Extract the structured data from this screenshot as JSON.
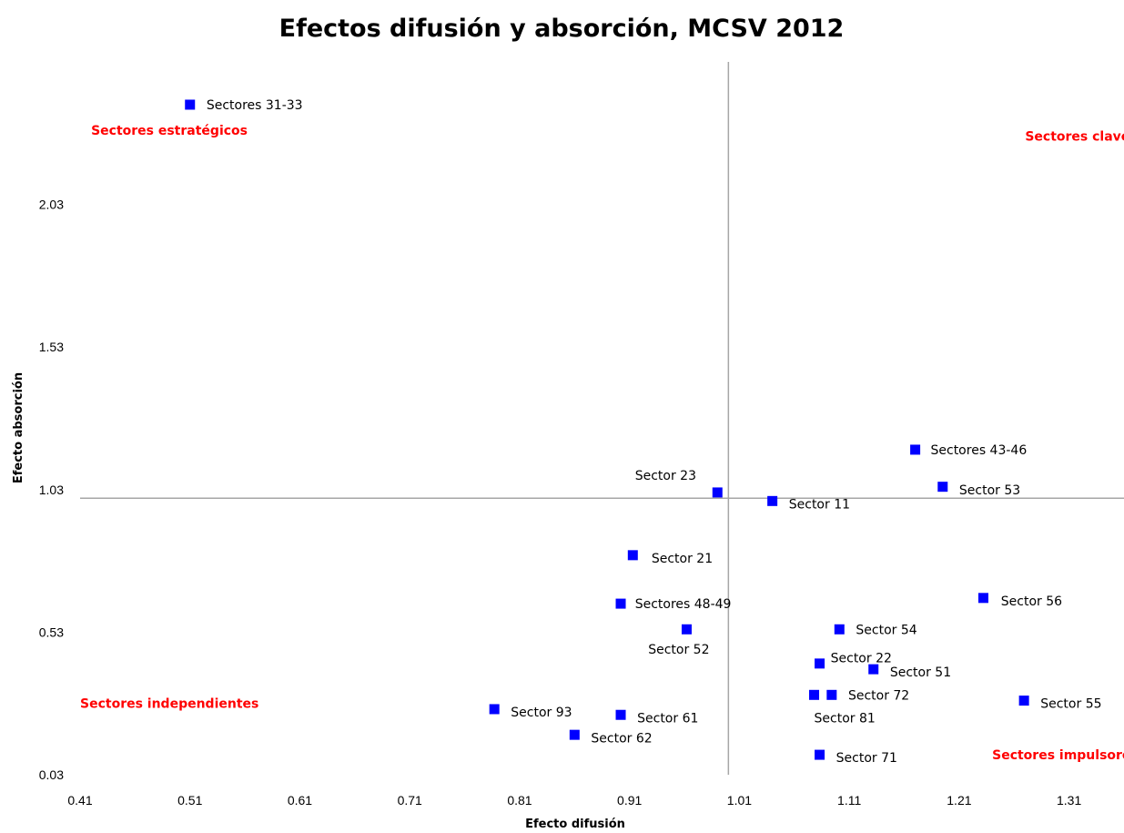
{
  "chart_data": {
    "type": "scatter",
    "title": "Efectos difusión y absorción, MCSV 2012",
    "xlabel": "Efecto difusión",
    "ylabel": "Efecto absorción",
    "xlim": [
      0.41,
      1.36
    ],
    "ylim": [
      0.03,
      2.53
    ],
    "xticks": [
      "0.41",
      "0.51",
      "0.61",
      "0.71",
      "0.81",
      "0.91",
      "1.01",
      "1.11",
      "1.21",
      "1.31"
    ],
    "yticks": [
      "0.03",
      "0.53",
      "1.03",
      "1.53",
      "2.03"
    ],
    "reference_lines": {
      "x": 1.0,
      "y": 1.0
    },
    "marker_color": "#0000ff",
    "quadrant_label_color": "#ff0000",
    "quadrants": [
      {
        "label": "Sectores  estratégicos",
        "x": 0.42,
        "y": 2.29
      },
      {
        "label": "Sectores clave",
        "x": 1.27,
        "y": 2.27
      },
      {
        "label": "Sectores independientes",
        "x": 0.41,
        "y": 0.28
      },
      {
        "label": "Sectores  impulsores",
        "x": 1.24,
        "y": 0.1
      }
    ],
    "points": [
      {
        "label": "Sectores 31-33",
        "x": 0.51,
        "y": 2.38,
        "lx": 0.525,
        "ly": 2.38
      },
      {
        "label": "Sectores 43-46",
        "x": 1.17,
        "y": 1.17,
        "lx": 1.184,
        "ly": 1.17
      },
      {
        "label": "Sector 53",
        "x": 1.195,
        "y": 1.04,
        "lx": 1.21,
        "ly": 1.03
      },
      {
        "label": "Sector 23",
        "x": 0.99,
        "y": 1.02,
        "lx": 0.915,
        "ly": 1.08
      },
      {
        "label": "Sector 11",
        "x": 1.04,
        "y": 0.99,
        "lx": 1.055,
        "ly": 0.98
      },
      {
        "label": "Sector 21",
        "x": 0.913,
        "y": 0.8,
        "lx": 0.93,
        "ly": 0.79
      },
      {
        "label": "Sector 56",
        "x": 1.232,
        "y": 0.65,
        "lx": 1.248,
        "ly": 0.64
      },
      {
        "label": "Sectores 48-49",
        "x": 0.902,
        "y": 0.63,
        "lx": 0.915,
        "ly": 0.63
      },
      {
        "label": "Sector 52",
        "x": 0.962,
        "y": 0.54,
        "lx": 0.927,
        "ly": 0.47
      },
      {
        "label": "Sector 54",
        "x": 1.101,
        "y": 0.54,
        "lx": 1.116,
        "ly": 0.54
      },
      {
        "label": "Sector 22",
        "x": 1.083,
        "y": 0.42,
        "lx": 1.093,
        "ly": 0.44
      },
      {
        "label": "Sector 51",
        "x": 1.132,
        "y": 0.4,
        "lx": 1.147,
        "ly": 0.39
      },
      {
        "label": "Sector 72",
        "x": 1.094,
        "y": 0.31,
        "lx": 1.109,
        "ly": 0.31
      },
      {
        "label": "Sector 81",
        "x": 1.078,
        "y": 0.31,
        "lx": 1.078,
        "ly": 0.23
      },
      {
        "label": "Sector 55",
        "x": 1.269,
        "y": 0.29,
        "lx": 1.284,
        "ly": 0.28
      },
      {
        "label": "Sector 93",
        "x": 0.787,
        "y": 0.26,
        "lx": 0.802,
        "ly": 0.25
      },
      {
        "label": "Sector 61",
        "x": 0.902,
        "y": 0.24,
        "lx": 0.917,
        "ly": 0.23
      },
      {
        "label": "Sector 62",
        "x": 0.86,
        "y": 0.17,
        "lx": 0.875,
        "ly": 0.16
      },
      {
        "label": "Sector 71",
        "x": 1.083,
        "y": 0.1,
        "lx": 1.098,
        "ly": 0.09
      }
    ]
  }
}
